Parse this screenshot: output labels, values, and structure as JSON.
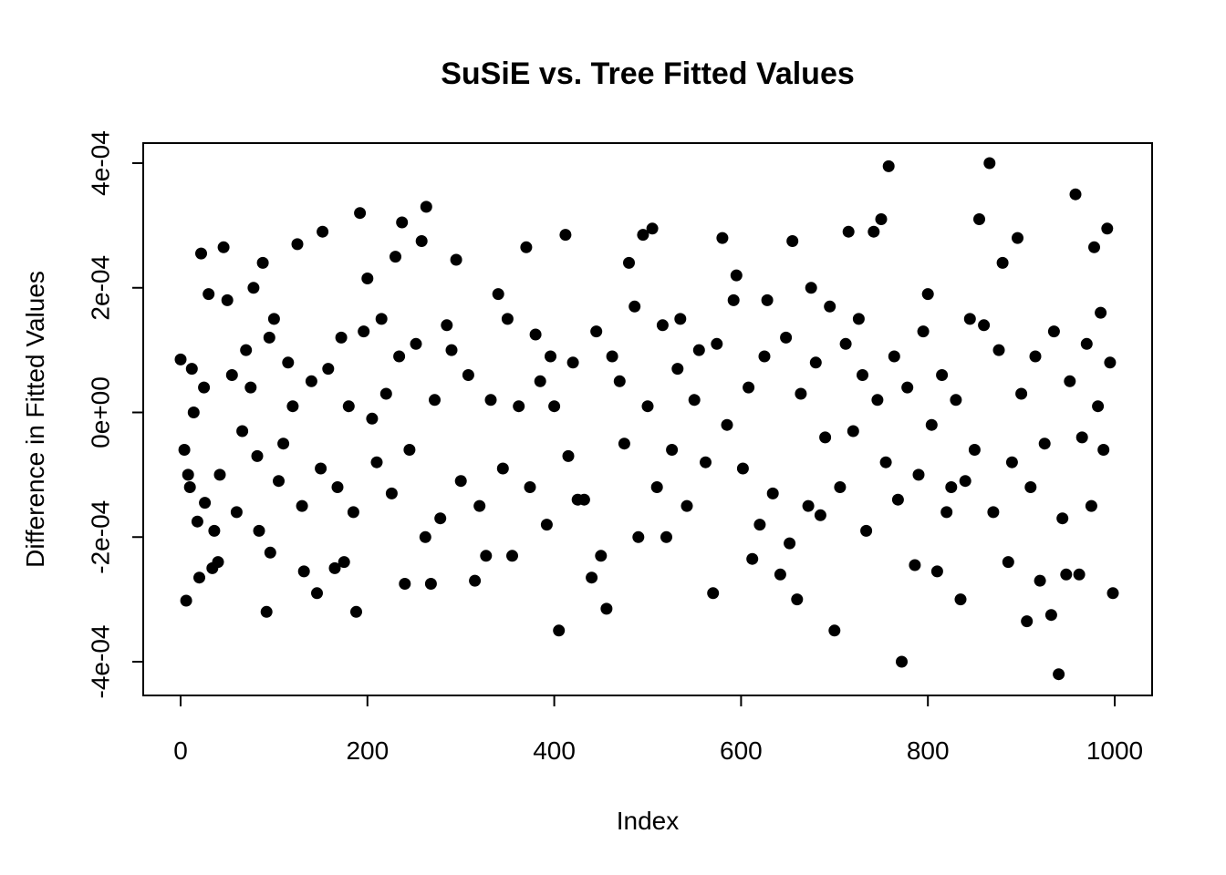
{
  "chart_data": {
    "type": "scatter",
    "title": "SuSiE vs. Tree Fitted Values",
    "xlabel": "Index",
    "ylabel": "Difference in Fitted Values",
    "xlim": [
      0,
      1000
    ],
    "ylim": [
      -0.0004,
      0.0004
    ],
    "x_ticks": [
      0,
      200,
      400,
      600,
      800,
      1000
    ],
    "x_tick_labels": [
      "0",
      "200",
      "400",
      "600",
      "800",
      "1000"
    ],
    "y_ticks": [
      -0.0004,
      -0.0002,
      0,
      0.0002,
      0.0004
    ],
    "y_tick_labels": [
      "-4e-04",
      "-2e-04",
      "0e+00",
      "2e-04",
      "4e-04"
    ],
    "grid": false,
    "legend": "none",
    "marker_color": "#000000",
    "points": [
      [
        0,
        8.5e-05
      ],
      [
        4,
        -6e-05
      ],
      [
        6,
        -0.000302
      ],
      [
        8,
        -0.0001
      ],
      [
        10,
        -0.00012
      ],
      [
        14,
        0.0
      ],
      [
        18,
        -0.000175
      ],
      [
        20,
        -0.000265
      ],
      [
        22,
        0.000255
      ],
      [
        26,
        -0.000145
      ],
      [
        30,
        0.00019
      ],
      [
        34,
        -0.00025
      ],
      [
        36,
        -0.00019
      ],
      [
        40,
        -0.00024
      ],
      [
        46,
        0.000265
      ],
      [
        50,
        0.00018
      ],
      [
        60,
        -0.00016
      ],
      [
        70,
        0.0001
      ],
      [
        78,
        0.0002
      ],
      [
        84,
        -0.00019
      ],
      [
        88,
        0.00024
      ],
      [
        92,
        -0.00032
      ],
      [
        96,
        -0.000225
      ],
      [
        100,
        0.00015
      ],
      [
        110,
        -5e-05
      ],
      [
        125,
        0.00027
      ],
      [
        132,
        -0.000255
      ],
      [
        146,
        -0.00029
      ],
      [
        152,
        0.00029
      ],
      [
        165,
        -0.00025
      ],
      [
        175,
        -0.00024
      ],
      [
        188,
        -0.00032
      ],
      [
        192,
        0.00032
      ],
      [
        200,
        0.000215
      ],
      [
        215,
        0.00015
      ],
      [
        230,
        0.00025
      ],
      [
        237,
        0.000305
      ],
      [
        240,
        -0.000275
      ],
      [
        258,
        0.000275
      ],
      [
        263,
        0.00033
      ],
      [
        268,
        -0.000275
      ],
      [
        285,
        0.00014
      ],
      [
        295,
        0.000245
      ],
      [
        315,
        -0.00027
      ],
      [
        327,
        -0.00023
      ],
      [
        340,
        0.00019
      ],
      [
        355,
        -0.00023
      ],
      [
        370,
        0.000265
      ],
      [
        380,
        0.000125
      ],
      [
        396,
        9e-05
      ],
      [
        405,
        -0.00035
      ],
      [
        412,
        0.000285
      ],
      [
        425,
        -0.00014
      ],
      [
        440,
        -0.000265
      ],
      [
        456,
        -0.000315
      ],
      [
        470,
        5e-05
      ],
      [
        480,
        0.00024
      ],
      [
        495,
        0.000285
      ],
      [
        505,
        0.000295
      ],
      [
        520,
        -0.0002
      ],
      [
        535,
        0.00015
      ],
      [
        555,
        0.0001
      ],
      [
        570,
        -0.00029
      ],
      [
        580,
        0.00028
      ],
      [
        595,
        0.00022
      ],
      [
        612,
        -0.000235
      ],
      [
        628,
        0.00018
      ],
      [
        642,
        -0.00026
      ],
      [
        655,
        0.000275
      ],
      [
        660,
        -0.0003
      ],
      [
        675,
        0.0002
      ],
      [
        685,
        -0.000165
      ],
      [
        700,
        -0.00035
      ],
      [
        715,
        0.00029
      ],
      [
        730,
        6e-05
      ],
      [
        742,
        0.00029
      ],
      [
        750,
        0.00031
      ],
      [
        758,
        0.000395
      ],
      [
        772,
        -0.0004
      ],
      [
        786,
        -0.000245
      ],
      [
        800,
        0.00019
      ],
      [
        810,
        -0.000255
      ],
      [
        825,
        -0.00012
      ],
      [
        835,
        -0.0003
      ],
      [
        855,
        0.00031
      ],
      [
        866,
        0.0004
      ],
      [
        880,
        0.00024
      ],
      [
        886,
        -0.00024
      ],
      [
        896,
        0.00028
      ],
      [
        906,
        -0.000335
      ],
      [
        920,
        -0.00027
      ],
      [
        932,
        -0.000325
      ],
      [
        940,
        -0.00042
      ],
      [
        948,
        -0.00026
      ],
      [
        958,
        0.00035
      ],
      [
        962,
        -0.00026
      ],
      [
        978,
        0.000265
      ],
      [
        985,
        0.00016
      ],
      [
        992,
        0.000295
      ],
      [
        998,
        -0.00029
      ],
      [
        12,
        7e-05
      ],
      [
        25,
        4e-05
      ],
      [
        42,
        -0.0001
      ],
      [
        55,
        6e-05
      ],
      [
        66,
        -3e-05
      ],
      [
        75,
        4e-05
      ],
      [
        82,
        -7e-05
      ],
      [
        95,
        0.00012
      ],
      [
        105,
        -0.00011
      ],
      [
        115,
        8e-05
      ],
      [
        120,
        1e-05
      ],
      [
        130,
        -0.00015
      ],
      [
        140,
        5e-05
      ],
      [
        150,
        -9e-05
      ],
      [
        158,
        7e-05
      ],
      [
        168,
        -0.00012
      ],
      [
        172,
        0.00012
      ],
      [
        180,
        1e-05
      ],
      [
        185,
        -0.00016
      ],
      [
        196,
        0.00013
      ],
      [
        205,
        -1e-05
      ],
      [
        210,
        -8e-05
      ],
      [
        220,
        3e-05
      ],
      [
        226,
        -0.00013
      ],
      [
        234,
        9e-05
      ],
      [
        245,
        -6e-05
      ],
      [
        252,
        0.00011
      ],
      [
        262,
        -0.0002
      ],
      [
        272,
        2e-05
      ],
      [
        278,
        -0.00017
      ],
      [
        290,
        0.0001
      ],
      [
        300,
        -0.00011
      ],
      [
        308,
        6e-05
      ],
      [
        320,
        -0.00015
      ],
      [
        332,
        2e-05
      ],
      [
        345,
        -9e-05
      ],
      [
        350,
        0.00015
      ],
      [
        362,
        1e-05
      ],
      [
        374,
        -0.00012
      ],
      [
        385,
        5e-05
      ],
      [
        392,
        -0.00018
      ],
      [
        400,
        1e-05
      ],
      [
        415,
        -7e-05
      ],
      [
        420,
        8e-05
      ],
      [
        432,
        -0.00014
      ],
      [
        445,
        0.00013
      ],
      [
        450,
        -0.00023
      ],
      [
        462,
        9e-05
      ],
      [
        475,
        -5e-05
      ],
      [
        486,
        0.00017
      ],
      [
        490,
        -0.0002
      ],
      [
        500,
        1e-05
      ],
      [
        510,
        -0.00012
      ],
      [
        516,
        0.00014
      ],
      [
        526,
        -6e-05
      ],
      [
        532,
        7e-05
      ],
      [
        542,
        -0.00015
      ],
      [
        550,
        2e-05
      ],
      [
        562,
        -8e-05
      ],
      [
        574,
        0.00011
      ],
      [
        585,
        -2e-05
      ],
      [
        592,
        0.00018
      ],
      [
        602,
        -9e-05
      ],
      [
        608,
        4e-05
      ],
      [
        620,
        -0.00018
      ],
      [
        625,
        9e-05
      ],
      [
        634,
        -0.00013
      ],
      [
        648,
        0.00012
      ],
      [
        652,
        -0.00021
      ],
      [
        664,
        3e-05
      ],
      [
        672,
        -0.00015
      ],
      [
        680,
        8e-05
      ],
      [
        690,
        -4e-05
      ],
      [
        695,
        0.00017
      ],
      [
        706,
        -0.00012
      ],
      [
        712,
        0.00011
      ],
      [
        720,
        -3e-05
      ],
      [
        726,
        0.00015
      ],
      [
        734,
        -0.00019
      ],
      [
        746,
        2e-05
      ],
      [
        755,
        -8e-05
      ],
      [
        764,
        9e-05
      ],
      [
        768,
        -0.00014
      ],
      [
        778,
        4e-05
      ],
      [
        790,
        -0.0001
      ],
      [
        795,
        0.00013
      ],
      [
        804,
        -2e-05
      ],
      [
        815,
        6e-05
      ],
      [
        820,
        -0.00016
      ],
      [
        830,
        2e-05
      ],
      [
        840,
        -0.00011
      ],
      [
        845,
        0.00015
      ],
      [
        850,
        -6e-05
      ],
      [
        860,
        0.00014
      ],
      [
        870,
        -0.00016
      ],
      [
        876,
        0.0001
      ],
      [
        890,
        -8e-05
      ],
      [
        900,
        3e-05
      ],
      [
        910,
        -0.00012
      ],
      [
        915,
        9e-05
      ],
      [
        925,
        -5e-05
      ],
      [
        935,
        0.00013
      ],
      [
        944,
        -0.00017
      ],
      [
        952,
        5e-05
      ],
      [
        965,
        -4e-05
      ],
      [
        970,
        0.00011
      ],
      [
        975,
        -0.00015
      ],
      [
        982,
        1e-05
      ],
      [
        988,
        -6e-05
      ],
      [
        995,
        8e-05
      ]
    ]
  }
}
